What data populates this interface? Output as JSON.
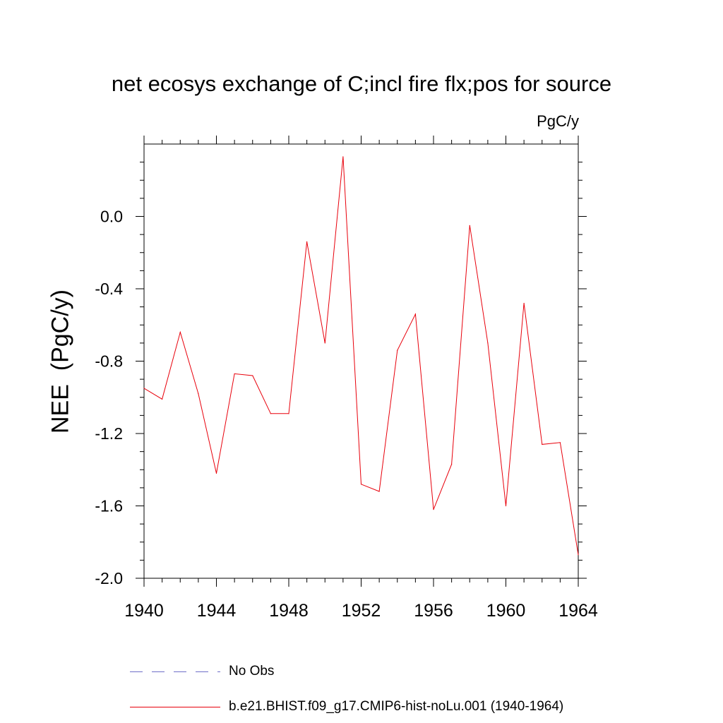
{
  "chart_data": {
    "type": "line",
    "title": "net ecosys exchange of C;incl fire flx;pos for source",
    "units_label": "PgC/y",
    "ylabel": "NEE  (PgC/y)",
    "xlabel": "",
    "xlim": [
      1940,
      1964
    ],
    "ylim": [
      -2.0,
      0.4
    ],
    "x_ticks": [
      1940,
      1944,
      1948,
      1952,
      1956,
      1960,
      1964
    ],
    "y_ticks": [
      0.0,
      -0.4,
      -0.8,
      -1.2,
      -1.6,
      -2.0
    ],
    "x_tick_labels": [
      "1940",
      "1944",
      "1948",
      "1952",
      "1956",
      "1960",
      "1964"
    ],
    "y_tick_labels": [
      "0.0",
      "-0.4",
      "-0.8",
      "-1.2",
      "-1.6",
      "-2.0"
    ],
    "grid": false,
    "legend_placement": "bottom",
    "series": [
      {
        "name": "b.e21.BHIST.f09_g17.CMIP6-hist-noLu.001 (1940-1964)",
        "color": "#e8000b",
        "style": "solid",
        "x": [
          1940,
          1941,
          1942,
          1943,
          1944,
          1945,
          1946,
          1947,
          1948,
          1949,
          1950,
          1951,
          1952,
          1953,
          1954,
          1955,
          1956,
          1957,
          1958,
          1959,
          1960,
          1961,
          1962,
          1963,
          1964
        ],
        "values": [
          -0.95,
          -1.01,
          -0.64,
          -0.98,
          -1.42,
          -0.87,
          -0.88,
          -1.09,
          -1.09,
          -0.14,
          -0.7,
          0.33,
          -1.48,
          -1.52,
          -0.74,
          -0.54,
          -1.62,
          -1.37,
          -0.05,
          -0.7,
          -1.6,
          -0.48,
          -1.26,
          -1.25,
          -1.87
        ]
      }
    ],
    "legend": [
      {
        "label": "No Obs",
        "color": "#6f6fc8",
        "style": "dashed"
      },
      {
        "label": "b.e21.BHIST.f09_g17.CMIP6-hist-noLu.001 (1940-1964)",
        "color": "#e8000b",
        "style": "solid"
      }
    ]
  }
}
